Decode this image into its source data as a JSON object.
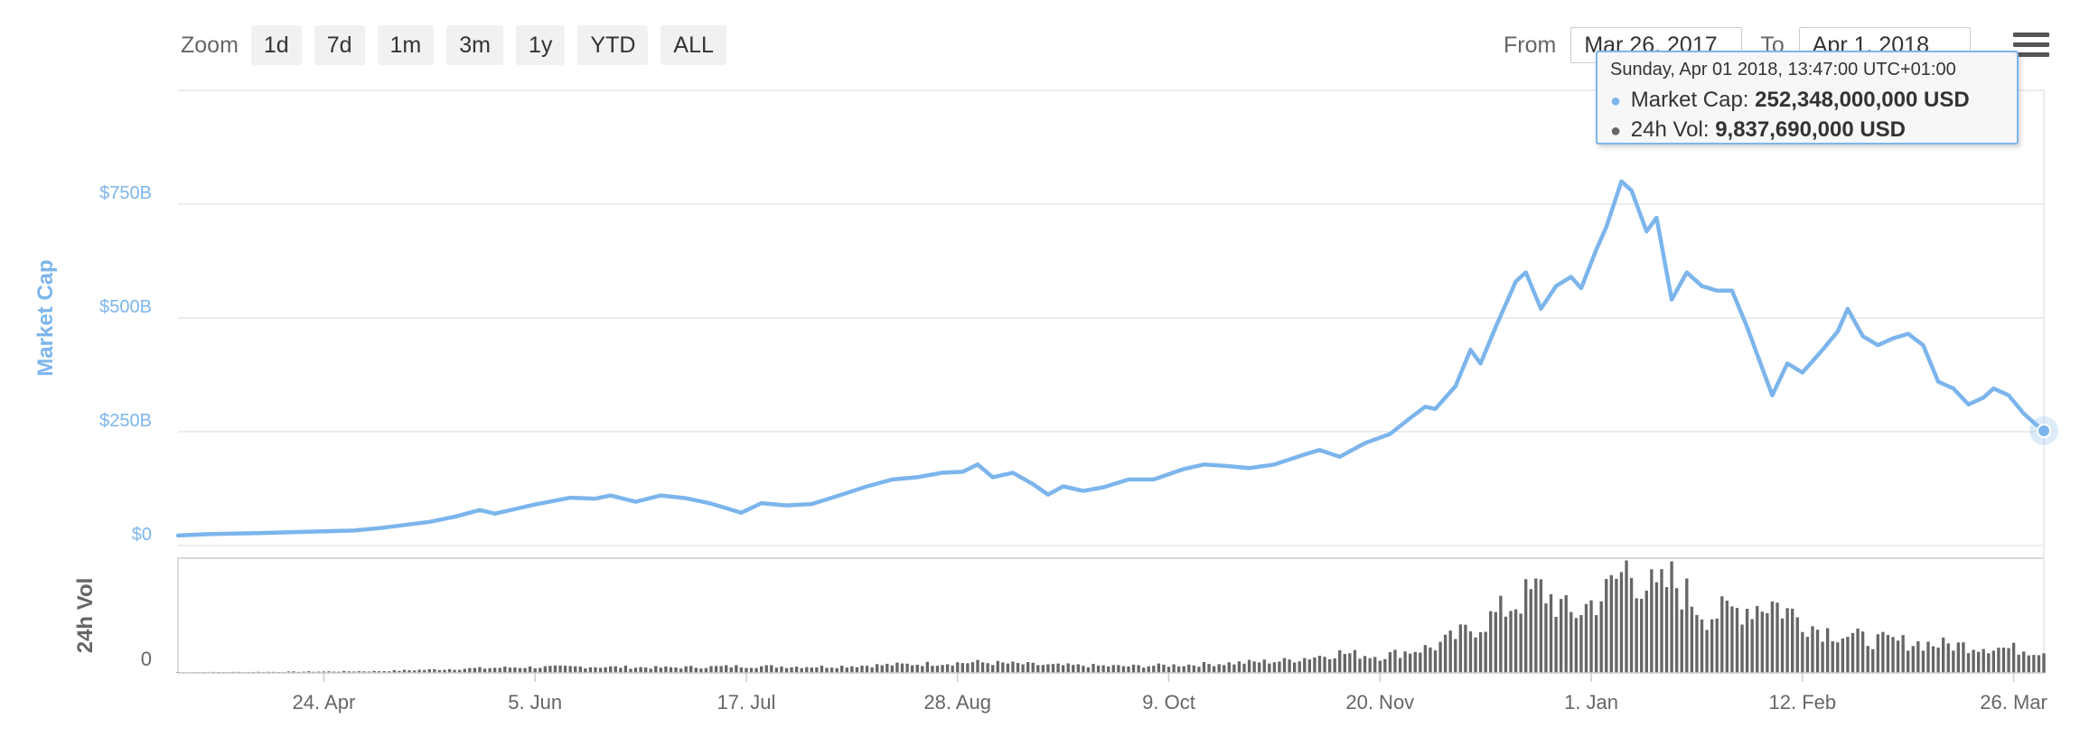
{
  "toolbar": {
    "zoom_label": "Zoom",
    "zoom_buttons": [
      "1d",
      "7d",
      "1m",
      "3m",
      "1y",
      "YTD",
      "ALL"
    ],
    "from_label": "From",
    "from_value": "Mar 26, 2017",
    "to_label": "To",
    "to_value": "Apr 1, 2018"
  },
  "tooltip": {
    "date": "Sunday, Apr 01 2018, 13:47:00 UTC+01:00",
    "market_cap_label": "Market Cap:",
    "market_cap_value": "252,348,000,000 USD",
    "volume_label": "24h Vol:",
    "volume_value": "9,837,690,000 USD"
  },
  "colors": {
    "market_cap": "#7cb5ec",
    "volume": "#666666",
    "grid": "#e6e6e6",
    "axis_text": "#666666"
  },
  "chart_data": {
    "type": "line",
    "x_start": "2017-03-26",
    "x_end": "2018-04-01",
    "xaxis": {
      "tick_labels": [
        "24. Apr",
        "5. Jun",
        "17. Jul",
        "28. Aug",
        "9. Oct",
        "20. Nov",
        "1. Jan",
        "12. Feb",
        "26. Mar"
      ],
      "tick_dates": [
        "2017-04-24",
        "2017-06-05",
        "2017-07-17",
        "2017-08-28",
        "2017-10-09",
        "2017-11-20",
        "2018-01-01",
        "2018-02-12",
        "2018-03-26"
      ]
    },
    "series": [
      {
        "name": "Market Cap",
        "unit": "USD billions",
        "ylabel": "Market Cap",
        "ylim": [
          0,
          1000
        ],
        "y_tick_values": [
          0,
          250,
          500,
          750
        ],
        "y_tick_labels": [
          "$0",
          "$250B",
          "$500B",
          "$750B"
        ],
        "points": [
          [
            "2017-03-26",
            22
          ],
          [
            "2017-04-01",
            25
          ],
          [
            "2017-04-10",
            27
          ],
          [
            "2017-04-20",
            30
          ],
          [
            "2017-04-30",
            33
          ],
          [
            "2017-05-05",
            38
          ],
          [
            "2017-05-10",
            45
          ],
          [
            "2017-05-15",
            52
          ],
          [
            "2017-05-20",
            63
          ],
          [
            "2017-05-25",
            78
          ],
          [
            "2017-05-28",
            70
          ],
          [
            "2017-06-05",
            90
          ],
          [
            "2017-06-12",
            105
          ],
          [
            "2017-06-17",
            103
          ],
          [
            "2017-06-20",
            110
          ],
          [
            "2017-06-25",
            96
          ],
          [
            "2017-06-30",
            110
          ],
          [
            "2017-07-05",
            104
          ],
          [
            "2017-07-10",
            92
          ],
          [
            "2017-07-16",
            72
          ],
          [
            "2017-07-20",
            93
          ],
          [
            "2017-07-25",
            88
          ],
          [
            "2017-07-30",
            91
          ],
          [
            "2017-08-05",
            112
          ],
          [
            "2017-08-10",
            130
          ],
          [
            "2017-08-15",
            145
          ],
          [
            "2017-08-20",
            150
          ],
          [
            "2017-08-25",
            160
          ],
          [
            "2017-08-29",
            162
          ],
          [
            "2017-09-01",
            178
          ],
          [
            "2017-09-04",
            150
          ],
          [
            "2017-09-08",
            160
          ],
          [
            "2017-09-12",
            135
          ],
          [
            "2017-09-15",
            112
          ],
          [
            "2017-09-18",
            130
          ],
          [
            "2017-09-22",
            120
          ],
          [
            "2017-09-26",
            128
          ],
          [
            "2017-10-01",
            145
          ],
          [
            "2017-10-06",
            145
          ],
          [
            "2017-10-12",
            168
          ],
          [
            "2017-10-16",
            178
          ],
          [
            "2017-10-20",
            175
          ],
          [
            "2017-10-25",
            170
          ],
          [
            "2017-10-30",
            178
          ],
          [
            "2017-11-05",
            200
          ],
          [
            "2017-11-08",
            210
          ],
          [
            "2017-11-12",
            195
          ],
          [
            "2017-11-17",
            225
          ],
          [
            "2017-11-22",
            245
          ],
          [
            "2017-11-26",
            280
          ],
          [
            "2017-11-29",
            305
          ],
          [
            "2017-12-01",
            300
          ],
          [
            "2017-12-05",
            350
          ],
          [
            "2017-12-08",
            430
          ],
          [
            "2017-12-10",
            400
          ],
          [
            "2017-12-13",
            480
          ],
          [
            "2017-12-17",
            580
          ],
          [
            "2017-12-19",
            600
          ],
          [
            "2017-12-22",
            520
          ],
          [
            "2017-12-25",
            570
          ],
          [
            "2017-12-28",
            590
          ],
          [
            "2017-12-30",
            565
          ],
          [
            "2018-01-02",
            650
          ],
          [
            "2018-01-04",
            700
          ],
          [
            "2018-01-07",
            800
          ],
          [
            "2018-01-09",
            780
          ],
          [
            "2018-01-12",
            690
          ],
          [
            "2018-01-14",
            720
          ],
          [
            "2018-01-17",
            540
          ],
          [
            "2018-01-20",
            600
          ],
          [
            "2018-01-23",
            570
          ],
          [
            "2018-01-26",
            560
          ],
          [
            "2018-01-29",
            560
          ],
          [
            "2018-02-01",
            480
          ],
          [
            "2018-02-03",
            420
          ],
          [
            "2018-02-06",
            330
          ],
          [
            "2018-02-09",
            400
          ],
          [
            "2018-02-12",
            380
          ],
          [
            "2018-02-16",
            430
          ],
          [
            "2018-02-19",
            470
          ],
          [
            "2018-02-21",
            520
          ],
          [
            "2018-02-24",
            460
          ],
          [
            "2018-02-27",
            440
          ],
          [
            "2018-03-02",
            455
          ],
          [
            "2018-03-05",
            465
          ],
          [
            "2018-03-08",
            440
          ],
          [
            "2018-03-11",
            360
          ],
          [
            "2018-03-14",
            345
          ],
          [
            "2018-03-17",
            310
          ],
          [
            "2018-03-20",
            325
          ],
          [
            "2018-03-22",
            345
          ],
          [
            "2018-03-25",
            330
          ],
          [
            "2018-03-28",
            290
          ],
          [
            "2018-03-30",
            270
          ],
          [
            "2018-04-01",
            252
          ]
        ]
      },
      {
        "name": "24h Vol",
        "type": "column",
        "unit": "USD billions",
        "ylabel": "24h Vol",
        "y_tick_values": [
          0
        ],
        "y_tick_labels": [
          "0"
        ],
        "points": [
          [
            "2017-03-26",
            0.3
          ],
          [
            "2017-04-15",
            0.5
          ],
          [
            "2017-05-05",
            0.8
          ],
          [
            "2017-05-20",
            1.8
          ],
          [
            "2017-06-01",
            2.5
          ],
          [
            "2017-06-15",
            2.8
          ],
          [
            "2017-07-01",
            2.4
          ],
          [
            "2017-07-16",
            3.0
          ],
          [
            "2017-08-01",
            2.8
          ],
          [
            "2017-08-20",
            4.0
          ],
          [
            "2017-09-01",
            4.8
          ],
          [
            "2017-09-15",
            3.5
          ],
          [
            "2017-10-01",
            3.0
          ],
          [
            "2017-10-15",
            3.8
          ],
          [
            "2017-11-01",
            5.5
          ],
          [
            "2017-11-12",
            9.0
          ],
          [
            "2017-11-20",
            7.5
          ],
          [
            "2017-12-01",
            12.0
          ],
          [
            "2017-12-10",
            22.0
          ],
          [
            "2017-12-17",
            32.0
          ],
          [
            "2017-12-22",
            38.0
          ],
          [
            "2017-12-28",
            26.0
          ],
          [
            "2018-01-04",
            36.0
          ],
          [
            "2018-01-08",
            48.0
          ],
          [
            "2018-01-14",
            36.0
          ],
          [
            "2018-01-17",
            42.0
          ],
          [
            "2018-01-24",
            26.0
          ],
          [
            "2018-02-06",
            32.0
          ],
          [
            "2018-02-15",
            20.0
          ],
          [
            "2018-02-25",
            15.0
          ],
          [
            "2018-03-10",
            13.0
          ],
          [
            "2018-03-20",
            12.0
          ],
          [
            "2018-04-01",
            9.8
          ]
        ]
      }
    ],
    "grid": true,
    "legend": "none"
  }
}
